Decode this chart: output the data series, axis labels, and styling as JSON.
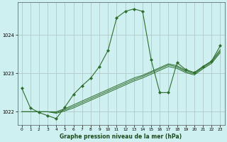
{
  "title": "Graphe pression niveau de la mer (hPa)",
  "bg_color": "#cff0f0",
  "grid_color": "#b0c8c8",
  "line_color": "#2d6e2d",
  "ylim": [
    1021.65,
    1024.85
  ],
  "yticks": [
    1022,
    1023,
    1024
  ],
  "xlim": [
    -0.5,
    23.5
  ],
  "xticks": [
    0,
    1,
    2,
    3,
    4,
    5,
    6,
    7,
    8,
    9,
    10,
    11,
    12,
    13,
    14,
    15,
    16,
    17,
    18,
    19,
    20,
    21,
    22,
    23
  ],
  "main_curve": [
    1022.62,
    1022.1,
    1021.98,
    1021.9,
    1021.82,
    1022.12,
    1022.45,
    1022.68,
    1022.88,
    1023.18,
    1023.6,
    1024.45,
    1024.62,
    1024.68,
    1024.62,
    1023.35,
    1022.5,
    1022.5,
    1023.28,
    1023.1,
    1023.02,
    1023.18,
    1023.32,
    1023.72
  ],
  "linear_lines": [
    [
      1022.0,
      1022.0,
      1022.0,
      1022.0,
      1022.0,
      1022.08,
      1022.18,
      1022.28,
      1022.38,
      1022.48,
      1022.58,
      1022.68,
      1022.78,
      1022.88,
      1022.95,
      1023.05,
      1023.15,
      1023.25,
      1023.2,
      1023.08,
      1023.02,
      1023.18,
      1023.32,
      1023.62
    ],
    [
      1022.0,
      1022.0,
      1022.0,
      1022.0,
      1021.98,
      1022.05,
      1022.14,
      1022.24,
      1022.34,
      1022.44,
      1022.54,
      1022.64,
      1022.74,
      1022.84,
      1022.92,
      1023.02,
      1023.12,
      1023.22,
      1023.17,
      1023.05,
      1022.99,
      1023.15,
      1023.29,
      1023.58
    ],
    [
      1022.0,
      1022.0,
      1022.0,
      1022.0,
      1021.96,
      1022.02,
      1022.1,
      1022.2,
      1022.3,
      1022.4,
      1022.5,
      1022.6,
      1022.7,
      1022.8,
      1022.88,
      1022.98,
      1023.08,
      1023.18,
      1023.13,
      1023.02,
      1022.96,
      1023.12,
      1023.26,
      1023.54
    ]
  ]
}
